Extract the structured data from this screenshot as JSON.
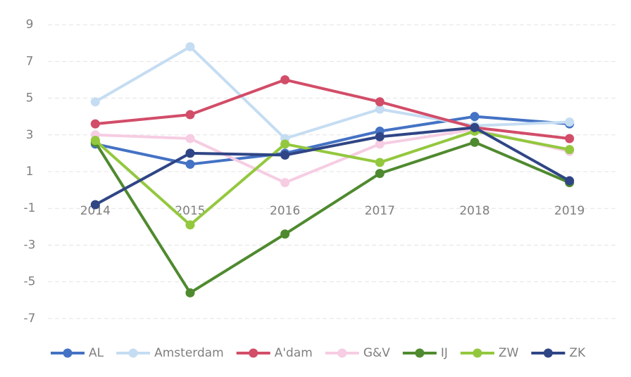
{
  "chart_data": {
    "type": "line",
    "categories": [
      "2014",
      "2015",
      "2016",
      "2017",
      "2018",
      "2019"
    ],
    "series": [
      {
        "name": "AL",
        "color": "#4472c4",
        "values": [
          2.5,
          1.4,
          2.0,
          3.2,
          4.0,
          3.6
        ]
      },
      {
        "name": "Amsterdam",
        "color": "#c5ddf2",
        "values": [
          4.8,
          7.8,
          2.8,
          4.4,
          3.5,
          3.7
        ]
      },
      {
        "name": "A'dam",
        "color": "#d24d68",
        "values": [
          3.6,
          4.1,
          6.0,
          4.8,
          3.4,
          2.8
        ]
      },
      {
        "name": "G&V",
        "color": "#f6cde3",
        "values": [
          3.0,
          2.8,
          0.4,
          2.5,
          3.3,
          2.1
        ]
      },
      {
        "name": "IJ",
        "color": "#4f8a2f",
        "values": [
          2.6,
          -5.6,
          -2.4,
          0.9,
          2.6,
          0.4
        ]
      },
      {
        "name": "ZW",
        "color": "#93c83e",
        "values": [
          2.7,
          -1.9,
          2.5,
          1.5,
          3.2,
          2.2
        ]
      },
      {
        "name": "ZK",
        "color": "#2f4585",
        "values": [
          -0.8,
          2.0,
          1.9,
          2.9,
          3.4,
          0.5
        ]
      }
    ],
    "ylim": [
      -8,
      10
    ],
    "yticks": [
      -7,
      -5,
      -3,
      -1,
      1,
      3,
      5,
      7,
      9
    ],
    "grid": true,
    "legend": "bottom"
  }
}
